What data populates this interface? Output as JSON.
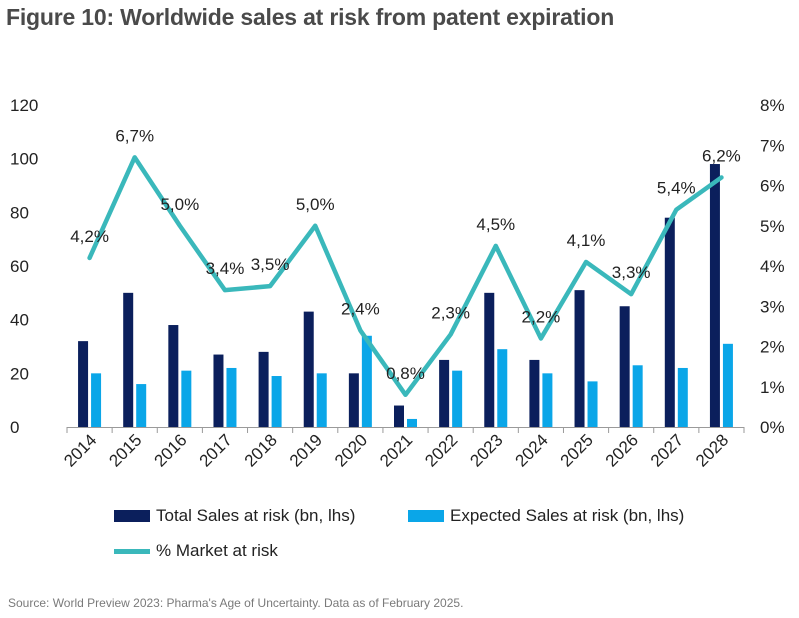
{
  "chart_data": {
    "type": "bar",
    "title": "Figure 10: Worldwide sales at risk from patent expiration",
    "categories": [
      "2014",
      "2015",
      "2016",
      "2017",
      "2018",
      "2019",
      "2020",
      "2021",
      "2022",
      "2023",
      "2024",
      "2025",
      "2026",
      "2027",
      "2028"
    ],
    "series": [
      {
        "name": "Total Sales at risk (bn, lhs)",
        "type": "bar",
        "axis": "left",
        "color": "#0b1f5c",
        "values": [
          32,
          50,
          38,
          27,
          28,
          43,
          20,
          8,
          25,
          50,
          25,
          51,
          45,
          78,
          98
        ]
      },
      {
        "name": "Expected Sales at risk (bn, lhs)",
        "type": "bar",
        "axis": "left",
        "color": "#0aa6e8",
        "values": [
          20,
          16,
          21,
          22,
          19,
          20,
          34,
          3,
          21,
          29,
          20,
          17,
          23,
          22,
          31
        ]
      },
      {
        "name": "% Market at risk",
        "type": "line",
        "axis": "right",
        "color": "#3ab8bb",
        "values": [
          4.2,
          6.7,
          5.0,
          3.4,
          3.5,
          5.0,
          2.4,
          0.8,
          2.3,
          4.5,
          2.2,
          4.1,
          3.3,
          5.4,
          6.2
        ],
        "labels": [
          "4,2%",
          "6,7%",
          "5,0%",
          "3,4%",
          "3,5%",
          "5,0%",
          "2,4%",
          "0,8%",
          "2,3%",
          "4,5%",
          "2,2%",
          "4,1%",
          "3,3%",
          "5,4%",
          "6,2%"
        ]
      }
    ],
    "y_left": {
      "ylim": [
        0,
        120
      ],
      "ticks": [
        "0",
        "20",
        "40",
        "60",
        "80",
        "100",
        "120"
      ]
    },
    "y_right": {
      "ylim": [
        0,
        8
      ],
      "ticks": [
        "0%",
        "1%",
        "2%",
        "3%",
        "4%",
        "5%",
        "6%",
        "7%",
        "8%"
      ]
    },
    "legend_position": "bottom"
  },
  "source": "Source: World Preview 2023: Pharma's Age of Uncertainty. Data as of February 2025."
}
